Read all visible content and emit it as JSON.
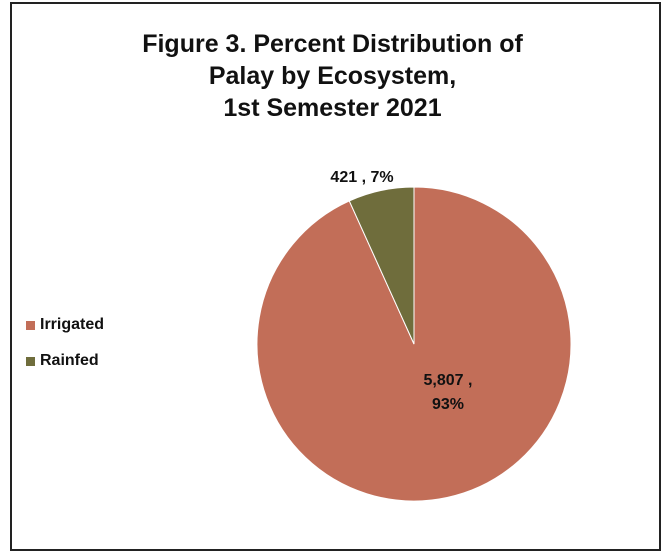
{
  "chart_data": {
    "type": "pie",
    "title_lines": [
      "Figure 3. Percent Distribution of",
      "Palay by Ecosystem,",
      "1st Semester 2021"
    ],
    "categories": [
      "Irrigated",
      "Rainfed"
    ],
    "values": [
      5807,
      421
    ],
    "percents": [
      93,
      7
    ],
    "data_labels": [
      {
        "lines": [
          "5,807 ,",
          "93%"
        ]
      },
      {
        "lines": [
          "421 , 7%"
        ]
      }
    ],
    "colors": [
      "#c26e58",
      "#6f6d3c"
    ],
    "legend": {
      "placement": "left",
      "entries": [
        {
          "label": "Irrigated",
          "color": "#c26e58"
        },
        {
          "label": "Rainfed",
          "color": "#6f6d3c"
        }
      ]
    }
  }
}
